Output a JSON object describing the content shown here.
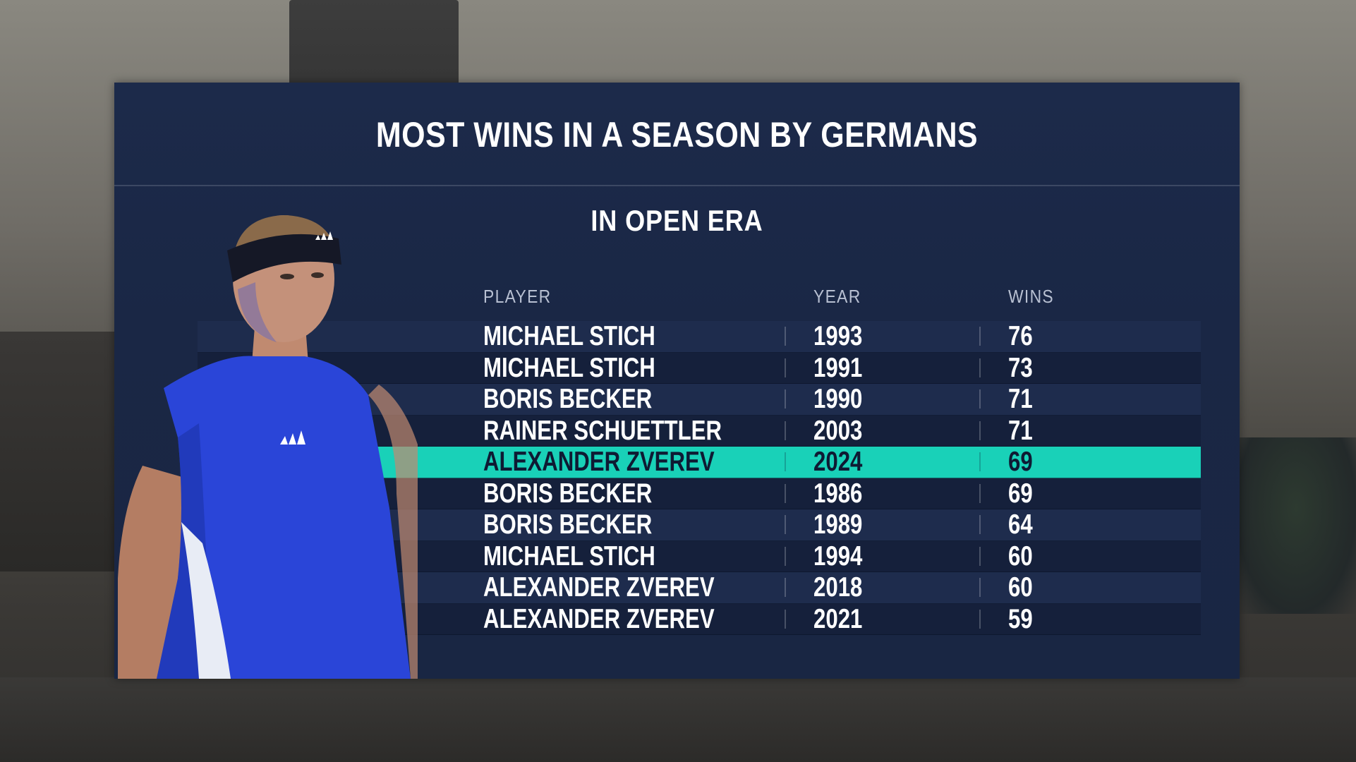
{
  "title": "MOST WINS IN A SEASON BY GERMANS",
  "subtitle": "IN OPEN ERA",
  "columns": {
    "player": "PLAYER",
    "year": "YEAR",
    "wins": "WINS"
  },
  "rows": [
    {
      "player": "MICHAEL STICH",
      "year": "1993",
      "wins": "76",
      "highlight": false
    },
    {
      "player": "MICHAEL STICH",
      "year": "1991",
      "wins": "73",
      "highlight": false
    },
    {
      "player": "BORIS BECKER",
      "year": "1990",
      "wins": "71",
      "highlight": false
    },
    {
      "player": "RAINER SCHUETTLER",
      "year": "2003",
      "wins": "71",
      "highlight": false
    },
    {
      "player": "ALEXANDER ZVEREV",
      "year": "2024",
      "wins": "69",
      "highlight": true
    },
    {
      "player": "BORIS BECKER",
      "year": "1986",
      "wins": "69",
      "highlight": false
    },
    {
      "player": "BORIS BECKER",
      "year": "1989",
      "wins": "64",
      "highlight": false
    },
    {
      "player": "MICHAEL STICH",
      "year": "1994",
      "wins": "60",
      "highlight": false
    },
    {
      "player": "ALEXANDER ZVEREV",
      "year": "2018",
      "wins": "60",
      "highlight": false
    },
    {
      "player": "ALEXANDER ZVEREV",
      "year": "2021",
      "wins": "59",
      "highlight": false
    }
  ],
  "colors": {
    "highlight": "#19d1b8",
    "panel": "#1c2a4a",
    "shirt": "#2a45d8"
  },
  "icons": {
    "player_photo": "tennis-player-portrait"
  }
}
